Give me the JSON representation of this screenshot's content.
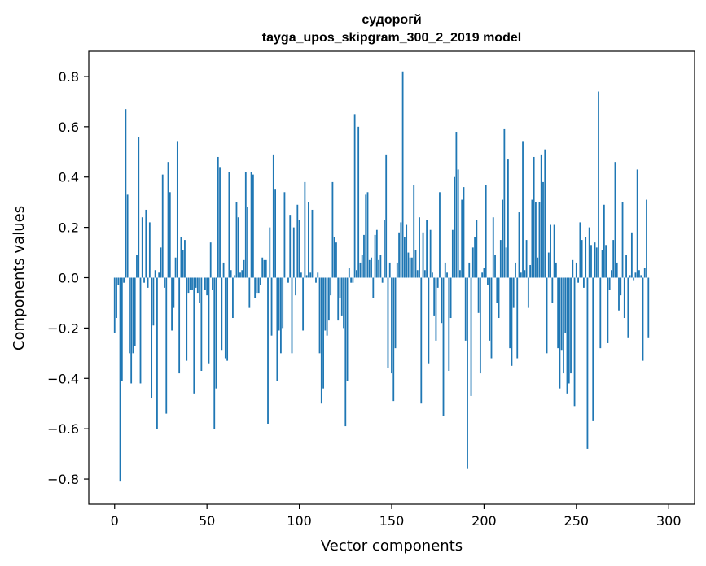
{
  "chart_data": {
    "type": "bar",
    "title": "судорогй",
    "subtitle": "tayga_upos_skipgram_300_2_2019 model",
    "xlabel": "Vector components",
    "ylabel": "Components values",
    "xlim": [
      -14,
      314
    ],
    "ylim": [
      -0.9,
      0.9
    ],
    "xticks": [
      0,
      50,
      100,
      150,
      200,
      250,
      300
    ],
    "yticks": [
      -0.8,
      -0.6,
      -0.4,
      -0.2,
      0.0,
      0.2,
      0.4,
      0.6,
      0.8
    ],
    "ytick_labels": [
      "−0.8",
      "−0.6",
      "−0.4",
      "−0.2",
      "0.0",
      "0.2",
      "0.4",
      "0.6",
      "0.8"
    ],
    "bar_color": "#1f77b4",
    "values": [
      -0.22,
      -0.16,
      -0.03,
      -0.81,
      -0.41,
      -0.02,
      0.67,
      0.33,
      -0.3,
      -0.42,
      -0.3,
      -0.27,
      0.09,
      0.56,
      -0.42,
      0.24,
      -0.02,
      0.27,
      -0.04,
      0.22,
      -0.48,
      -0.19,
      0.03,
      -0.6,
      0.02,
      0.12,
      0.41,
      -0.04,
      -0.54,
      0.46,
      0.34,
      -0.21,
      -0.12,
      0.08,
      0.54,
      -0.38,
      0.16,
      0.11,
      0.15,
      -0.33,
      -0.06,
      -0.05,
      -0.05,
      -0.46,
      -0.04,
      -0.06,
      -0.1,
      -0.37,
      0.0,
      -0.05,
      -0.07,
      -0.34,
      0.14,
      -0.05,
      -0.6,
      -0.44,
      0.48,
      0.44,
      -0.29,
      0.06,
      -0.32,
      -0.33,
      0.42,
      0.03,
      -0.16,
      0.01,
      0.3,
      0.24,
      0.02,
      0.03,
      0.07,
      0.42,
      0.28,
      -0.12,
      0.42,
      0.41,
      -0.08,
      -0.06,
      -0.06,
      -0.03,
      0.08,
      0.07,
      0.07,
      -0.58,
      0.2,
      -0.23,
      0.49,
      0.35,
      -0.41,
      -0.21,
      -0.3,
      -0.2,
      0.34,
      0.0,
      -0.02,
      0.25,
      -0.3,
      0.2,
      -0.07,
      0.29,
      0.23,
      0.02,
      -0.21,
      0.38,
      0.01,
      0.3,
      0.02,
      0.27,
      0.0,
      -0.02,
      0.02,
      -0.3,
      -0.5,
      -0.44,
      -0.21,
      -0.23,
      -0.17,
      -0.07,
      0.38,
      0.16,
      0.14,
      -0.17,
      -0.08,
      -0.15,
      -0.2,
      -0.59,
      -0.41,
      0.04,
      -0.02,
      -0.02,
      0.65,
      0.03,
      0.6,
      0.06,
      0.09,
      0.17,
      0.33,
      0.34,
      0.07,
      0.08,
      -0.08,
      0.17,
      0.19,
      0.07,
      0.09,
      -0.02,
      0.23,
      0.49,
      -0.36,
      0.06,
      -0.38,
      -0.49,
      -0.28,
      0.06,
      0.18,
      0.22,
      0.82,
      0.16,
      0.21,
      0.1,
      0.08,
      0.08,
      0.37,
      0.11,
      0.03,
      0.24,
      -0.5,
      0.18,
      0.03,
      0.23,
      -0.34,
      0.19,
      0.02,
      -0.15,
      -0.25,
      -0.04,
      0.34,
      -0.18,
      -0.55,
      0.06,
      0.02,
      -0.37,
      -0.16,
      0.19,
      0.4,
      0.58,
      0.43,
      0.03,
      0.31,
      0.36,
      -0.25,
      -0.76,
      0.06,
      -0.47,
      0.12,
      0.16,
      0.23,
      -0.14,
      -0.38,
      0.02,
      0.04,
      0.37,
      -0.03,
      -0.25,
      -0.32,
      0.24,
      0.09,
      -0.1,
      -0.16,
      0.15,
      0.31,
      0.59,
      0.12,
      0.47,
      -0.28,
      -0.35,
      -0.12,
      0.06,
      -0.32,
      0.26,
      0.02,
      0.54,
      0.03,
      0.15,
      -0.12,
      0.05,
      0.31,
      0.48,
      0.3,
      0.08,
      0.3,
      0.49,
      0.38,
      0.51,
      -0.3,
      0.1,
      0.21,
      -0.1,
      0.21,
      0.06,
      -0.28,
      -0.44,
      -0.29,
      -0.38,
      -0.22,
      -0.46,
      -0.42,
      -0.38,
      0.07,
      -0.51,
      0.06,
      -0.02,
      0.22,
      0.15,
      -0.04,
      0.16,
      -0.68,
      0.2,
      0.13,
      -0.57,
      0.14,
      0.12,
      0.74,
      -0.28,
      0.11,
      0.29,
      0.13,
      -0.26,
      -0.05,
      0.03,
      0.15,
      0.46,
      0.06,
      -0.13,
      -0.07,
      0.3,
      -0.16,
      0.09,
      -0.24,
      0.01,
      0.18,
      -0.01,
      0.02,
      0.43,
      0.03,
      0.01,
      -0.33,
      0.04,
      0.31,
      -0.24
    ]
  }
}
